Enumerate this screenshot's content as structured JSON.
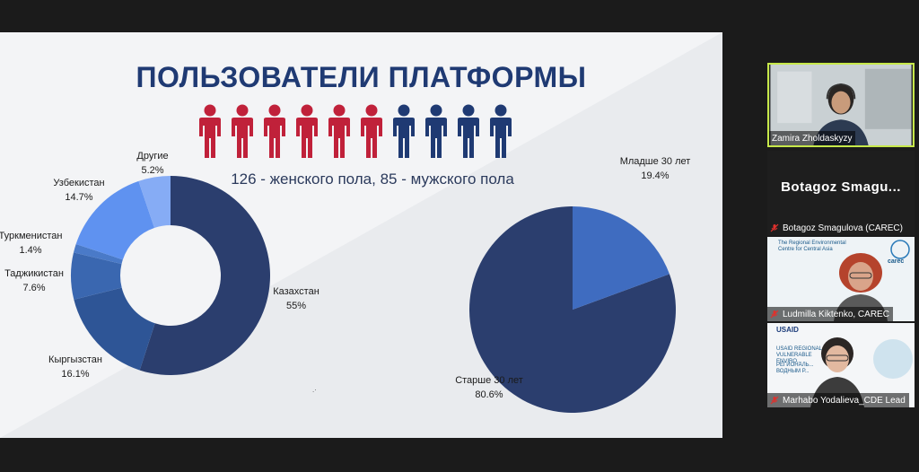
{
  "slide": {
    "title": "ПОЛЬЗОВАТЕЛИ ПЛАТФОРМЫ",
    "stat_line": "126 - женского пола, 85 - мужского пола",
    "people": {
      "female_count": 6,
      "male_count": 4,
      "female_color": "#c0213a",
      "male_color": "#1f3a73"
    }
  },
  "chart_data": [
    {
      "type": "donut",
      "title": "",
      "slices": [
        {
          "label": "Казахстан",
          "value_label": "55%",
          "value": 55,
          "color": "#2b3e6e"
        },
        {
          "label": "Кыргызстан",
          "value_label": "16.1%",
          "value": 16.1,
          "color": "#2e5596"
        },
        {
          "label": "Таджикистан",
          "value_label": "7.6%",
          "value": 7.6,
          "color": "#3a67b0"
        },
        {
          "label": "Туркменистан",
          "value_label": "1.4%",
          "value": 1.4,
          "color": "#4a7ac8"
        },
        {
          "label": "Узбекистан",
          "value_label": "14.7%",
          "value": 14.7,
          "color": "#5f92f0"
        },
        {
          "label": "Другие",
          "value_label": "5.2%",
          "value": 5.2,
          "color": "#86acf5"
        }
      ]
    },
    {
      "type": "pie",
      "title": "",
      "slices": [
        {
          "label": "Старше 30 лет",
          "value_label": "80.6%",
          "value": 80.6,
          "color": "#2b3e6e"
        },
        {
          "label": "Младше 30 лет",
          "value_label": "19.4%",
          "value": 19.4,
          "color": "#3f6cc0"
        }
      ]
    }
  ],
  "participants": [
    {
      "name": "Zamira Zholdaskyzy",
      "active": true,
      "muted": false,
      "video": true
    },
    {
      "name": "Botagoz Smagulova (CAREC)",
      "display_name": "Botagoz  Smagu...",
      "active": false,
      "muted": true,
      "video": false
    },
    {
      "name": "Ludmilla Kiktenko, CAREC",
      "active": false,
      "muted": true,
      "video": true,
      "bg_text": "The Regional Environmental Centre for Central Asia",
      "logo_text": "carec"
    },
    {
      "name": "Marhabo Yodalieva_CDE Lead",
      "active": false,
      "muted": true,
      "video": true,
      "bg_text": "USAID",
      "bg_text2": "USAID REGIONAL VULNERABLE ENVIRO...",
      "bg_text3": "РЕГИОНАЛЬ... ВОДНЫМ Р..."
    }
  ],
  "colors": {
    "mic_muted": "#e0312d",
    "active_border": "#c6e84a",
    "slide_title": "#1f3a73"
  }
}
